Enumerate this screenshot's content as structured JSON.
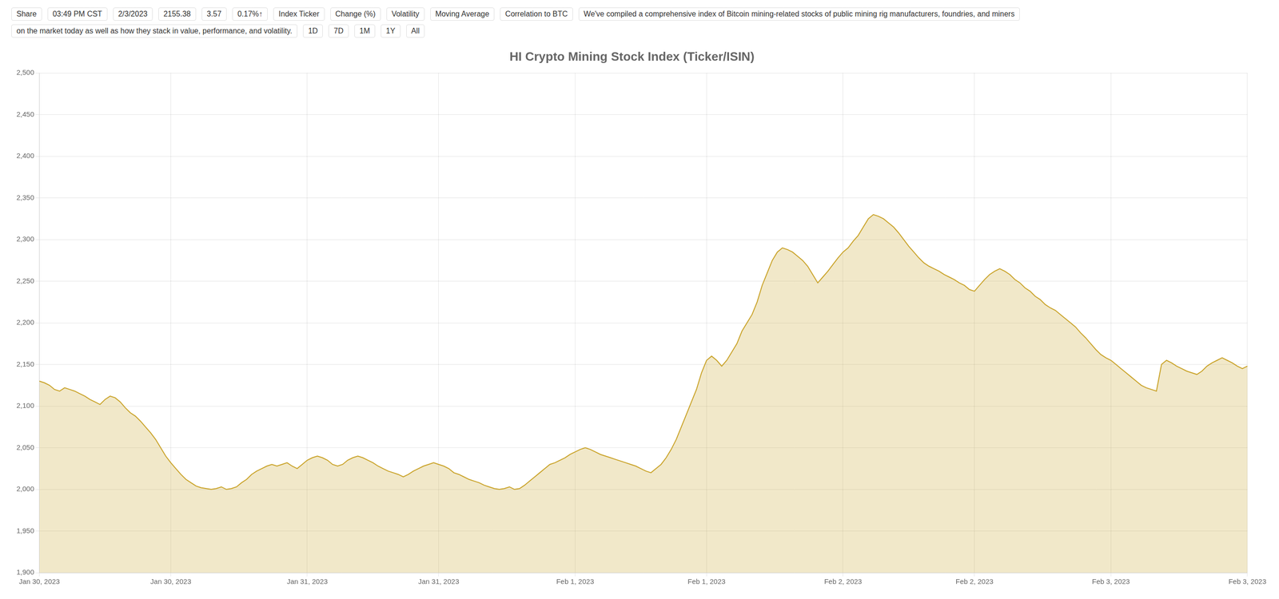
{
  "chart_data": {
    "type": "line",
    "title": "HI Crypto Mining Stock Index (Ticker/ISIN)",
    "annotations": [
      "Share",
      "03:49 PM CST",
      "2/3/2023",
      "2155.38",
      "3.57",
      "0.17%↑",
      "Index Ticker",
      "Change (%)",
      "Volatility",
      "Moving Average",
      "Correlation to BTC",
      "We've compiled a comprehensive index of Bitcoin mining-related stocks of public mining rig manufacturers, foundries, and miners",
      "on the market today as well as how they stack in value, performance, and volatility.",
      "1D",
      "7D",
      "1M",
      "1Y",
      "All"
    ],
    "categories": [
      "Jan 30, 2023",
      null,
      null,
      null,
      null,
      null,
      null,
      null,
      null,
      null,
      null,
      null,
      null,
      null,
      null,
      null,
      null,
      null,
      null,
      null,
      null,
      null,
      null,
      null,
      null,
      null,
      "Jan 30, 2023",
      null,
      null,
      null,
      null,
      null,
      null,
      null,
      null,
      null,
      null,
      null,
      null,
      null,
      null,
      null,
      null,
      null,
      null,
      null,
      null,
      null,
      null,
      null,
      null,
      null,
      null,
      "Jan 31, 2023",
      null,
      null,
      null,
      null,
      null,
      null,
      null,
      null,
      null,
      null,
      null,
      null,
      null,
      null,
      null,
      null,
      null,
      null,
      null,
      null,
      null,
      null,
      null,
      null,
      null,
      "Jan 31, 2023",
      null,
      null,
      null,
      null,
      null,
      null,
      null,
      null,
      null,
      null,
      null,
      null,
      null,
      null,
      null,
      null,
      null,
      null,
      null,
      null,
      null,
      null,
      null,
      null,
      null,
      null,
      "Feb 1, 2023",
      null,
      null,
      null,
      null,
      null,
      null,
      null,
      null,
      null,
      null,
      null,
      null,
      null,
      null,
      null,
      null,
      null,
      null,
      null,
      null,
      null,
      null,
      null,
      null,
      null,
      "Feb 1, 2023",
      null,
      null,
      null,
      null,
      null,
      null,
      null,
      null,
      null,
      null,
      null,
      null,
      null,
      null,
      null,
      null,
      null,
      null,
      null,
      null,
      null,
      null,
      null,
      null,
      null,
      null,
      "Feb 2, 2023",
      null,
      null,
      null,
      null,
      null,
      null,
      null,
      null,
      null,
      null,
      null,
      null,
      null,
      null,
      null,
      null,
      null,
      null,
      null,
      null,
      null,
      null,
      null,
      null,
      null,
      "Feb 2, 2023",
      null,
      null,
      null,
      null,
      null,
      null,
      null,
      null,
      null,
      null,
      null,
      null,
      null,
      null,
      null,
      null,
      null,
      null,
      null,
      null,
      null,
      null,
      null,
      null,
      null,
      null,
      "Feb 3, 2023",
      null,
      null,
      null,
      null,
      null,
      null,
      null,
      null,
      null,
      null,
      null,
      null,
      null,
      null,
      null,
      null,
      null,
      null,
      null,
      null,
      null,
      null,
      null,
      null,
      null,
      null,
      "Feb 3, 2023"
    ],
    "values": [
      2130,
      2128,
      2125,
      2120,
      2118,
      2122,
      2120,
      2118,
      2115,
      2112,
      2108,
      2105,
      2102,
      2108,
      2112,
      2110,
      2105,
      2098,
      2092,
      2088,
      2082,
      2075,
      2068,
      2060,
      2050,
      2040,
      2032,
      2025,
      2018,
      2012,
      2008,
      2004,
      2002,
      2001,
      2000,
      2001,
      2003,
      2000,
      2001,
      2003,
      2008,
      2012,
      2018,
      2022,
      2025,
      2028,
      2030,
      2028,
      2030,
      2032,
      2028,
      2025,
      2030,
      2035,
      2038,
      2040,
      2038,
      2035,
      2030,
      2028,
      2030,
      2035,
      2038,
      2040,
      2038,
      2035,
      2032,
      2028,
      2025,
      2022,
      2020,
      2018,
      2015,
      2018,
      2022,
      2025,
      2028,
      2030,
      2032,
      2030,
      2028,
      2025,
      2020,
      2018,
      2015,
      2012,
      2010,
      2008,
      2005,
      2003,
      2001,
      2000,
      2001,
      2003,
      2000,
      2001,
      2005,
      2010,
      2015,
      2020,
      2025,
      2030,
      2032,
      2035,
      2038,
      2042,
      2045,
      2048,
      2050,
      2048,
      2045,
      2042,
      2040,
      2038,
      2036,
      2034,
      2032,
      2030,
      2028,
      2025,
      2022,
      2020,
      2025,
      2030,
      2038,
      2048,
      2060,
      2075,
      2090,
      2105,
      2120,
      2140,
      2155,
      2160,
      2155,
      2148,
      2155,
      2165,
      2175,
      2190,
      2200,
      2210,
      2225,
      2245,
      2260,
      2275,
      2285,
      2290,
      2288,
      2285,
      2280,
      2275,
      2268,
      2258,
      2248,
      2255,
      2262,
      2270,
      2278,
      2285,
      2290,
      2298,
      2305,
      2315,
      2325,
      2330,
      2328,
      2325,
      2320,
      2315,
      2308,
      2300,
      2292,
      2285,
      2278,
      2272,
      2268,
      2265,
      2262,
      2258,
      2255,
      2252,
      2248,
      2245,
      2240,
      2238,
      2245,
      2252,
      2258,
      2262,
      2265,
      2262,
      2258,
      2252,
      2248,
      2242,
      2238,
      2232,
      2228,
      2222,
      2218,
      2215,
      2210,
      2205,
      2200,
      2195,
      2188,
      2182,
      2175,
      2168,
      2162,
      2158,
      2155,
      2150,
      2145,
      2140,
      2135,
      2130,
      2125,
      2122,
      2120,
      2118,
      2150,
      2155,
      2152,
      2148,
      2145,
      2142,
      2140,
      2138,
      2142,
      2148,
      2152,
      2155,
      2158,
      2155,
      2152,
      2148,
      2145,
      2148
    ],
    "color": "#c9a227",
    "ylim": [
      1900,
      2500
    ],
    "yticks": [
      {
        "value": 1900,
        "label": "1,900"
      },
      {
        "value": 1950,
        "label": "1,950"
      },
      {
        "value": 2000,
        "label": "2,000"
      },
      {
        "value": 2050,
        "label": "2,050"
      },
      {
        "value": 2100,
        "label": "2,100"
      },
      {
        "value": 2150,
        "label": "2,150"
      },
      {
        "value": 2200,
        "label": "2,200"
      },
      {
        "value": 2250,
        "label": "2,250"
      },
      {
        "value": 2300,
        "label": "2,300"
      },
      {
        "value": 2350,
        "label": "2,350"
      },
      {
        "value": 2400,
        "label": "2,400"
      },
      {
        "value": 2450,
        "label": "2,450"
      },
      {
        "value": 2500,
        "label": "2,500"
      }
    ],
    "grid": true
  }
}
